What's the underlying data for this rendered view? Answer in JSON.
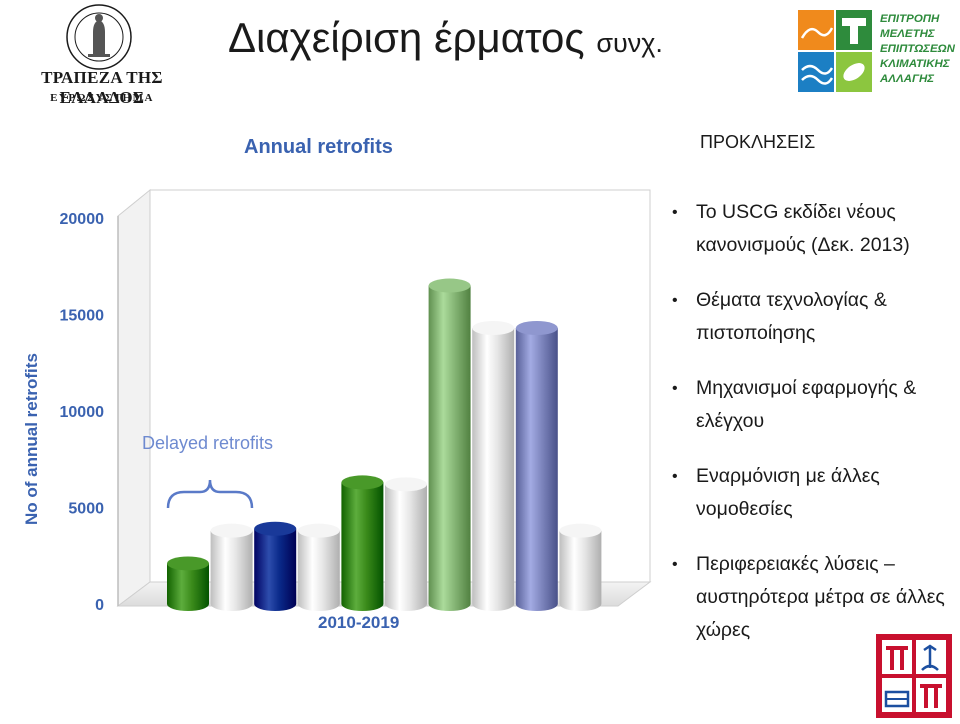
{
  "header": {
    "title": "Διαχείριση έρματος",
    "title_suffix": "συνχ."
  },
  "bank_logo": {
    "name": "ΤΡΑΠΕΖΑ ΤΗΣ ΕΛΛΑΔΟΣ",
    "subtitle": "ΕΥΡΩΣΥΣΤΗΜΑ",
    "seal_text": "ΤΡΑΠΕΖΑ ΤΗΣ ΕΛΛΑΔΟΣ 1928"
  },
  "committee_logo": {
    "lines": [
      "ΕΠΙΤΡΟΠΗ",
      "ΜΕΛΕΤΗΣ",
      "ΕΠΙΠΤΩΣΕΩΝ",
      "ΚΛΙΜΑΤΙΚΗΣ",
      "ΑΛΛΑΓΗΣ"
    ],
    "green": "#2e8b3c",
    "orange": "#f08a1c",
    "blue": "#1c7fc4"
  },
  "university_logo": {
    "letters": "ΠΠ",
    "color": "#c8102e"
  },
  "chart_data": {
    "type": "bar",
    "title": "Annual retrofits",
    "ylabel": "No of annual retrofits",
    "xlabel": "2010-2019",
    "ylim": [
      0,
      20000
    ],
    "yticks": [
      "0",
      "5000",
      "10000",
      "15000",
      "20000"
    ],
    "annotation": "Delayed retrofits",
    "grid": false,
    "legend": "none",
    "values": [
      2100,
      3800,
      3900,
      3800,
      6300,
      6200,
      16500,
      14300,
      14300,
      3800
    ],
    "colors": [
      "#3a8a1a",
      "#e6e6e6",
      "#0a2a8a",
      "#e6e6e6",
      "#3a8a1a",
      "#e6e6e6",
      "#88b878",
      "#e6e6e6",
      "#8088c0",
      "#e6e6e6"
    ]
  },
  "sidebar": {
    "heading": "ΠΡΟΚΛΗΣΕΙΣ",
    "bullets": [
      {
        "dot": "•",
        "text": "Το USCG εκδίδει νέους κανονισμούς (Δεκ. 2013)"
      },
      {
        "dot": "•",
        "text": "Θέματα τεχνολογίας & πιστοποίησης"
      },
      {
        "dot": "•",
        "text": "Μηχανισμοί εφαρμογής & ελέγχου"
      },
      {
        "dot": "•",
        "text": "Εναρμόνιση με άλλες νομοθεσίες"
      },
      {
        "dot": "•",
        "text": "Περιφερειακές λύσεις – αυστηρότερα μέτρα σε άλλες χώρες"
      }
    ]
  }
}
